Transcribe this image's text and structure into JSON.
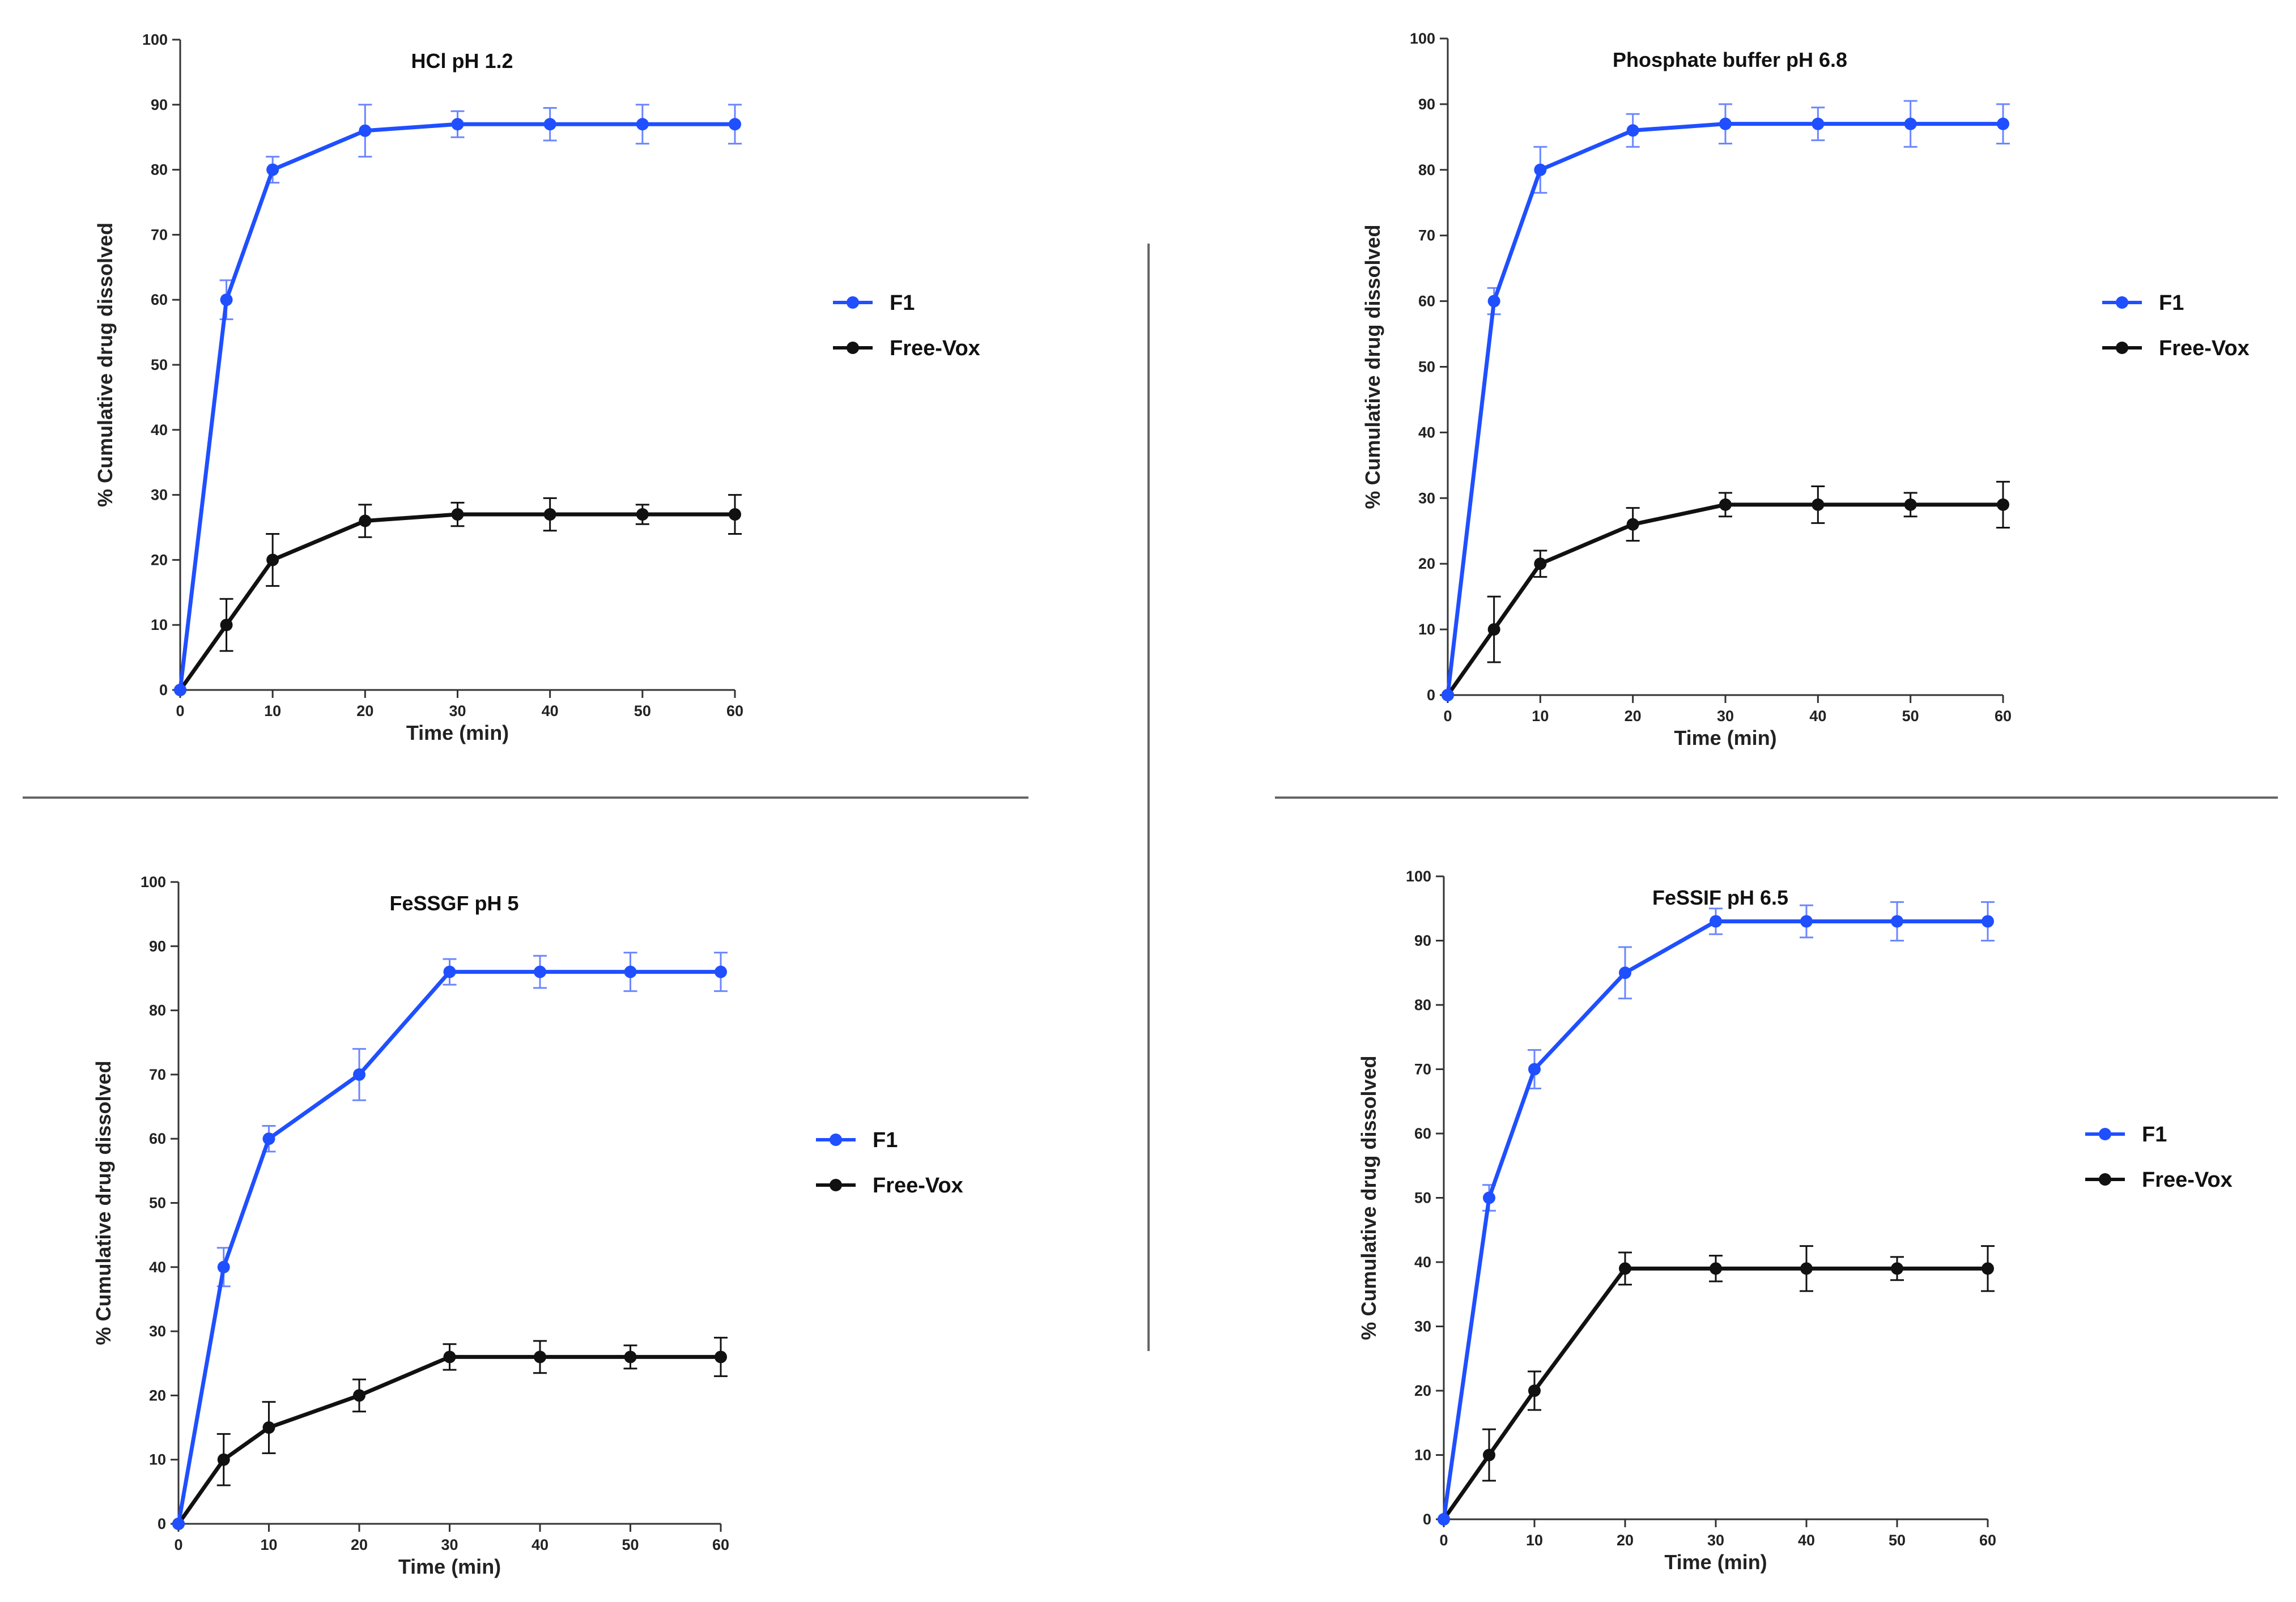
{
  "colors": {
    "F1": "#1f4fff",
    "Free-Vox": "#111111",
    "errorF1": "#6b86ff",
    "separator": "#666666"
  },
  "chart_data": [
    {
      "type": "line",
      "title": "HCl pH 1.2",
      "xlabel": "Time (min)",
      "ylabel": "% Cumulative drug dissolved",
      "xlim": [
        0,
        60
      ],
      "ylim": [
        0,
        100
      ],
      "xticks": [
        0,
        10,
        20,
        30,
        40,
        50,
        60
      ],
      "yticks": [
        0,
        10,
        20,
        30,
        40,
        50,
        60,
        70,
        80,
        90,
        100
      ],
      "legend_position": "right",
      "x": [
        0,
        5,
        10,
        20,
        30,
        40,
        50,
        60
      ],
      "series": [
        {
          "name": "F1",
          "values": [
            0,
            60,
            80,
            86,
            87,
            87,
            87,
            87
          ],
          "errors": [
            0,
            3,
            2,
            4,
            2,
            2.5,
            3,
            3
          ]
        },
        {
          "name": "Free-Vox",
          "values": [
            0,
            10,
            20,
            26,
            27,
            27,
            27,
            27
          ],
          "errors": [
            0,
            4,
            4,
            2.5,
            1.8,
            2.5,
            1.5,
            3
          ]
        }
      ]
    },
    {
      "type": "line",
      "title": "Phosphate buffer pH 6.8",
      "xlabel": "Time (min)",
      "ylabel": "% Cumulative drug dissolved",
      "xlim": [
        0,
        60
      ],
      "ylim": [
        0,
        100
      ],
      "xticks": [
        0,
        10,
        20,
        30,
        40,
        50,
        60
      ],
      "yticks": [
        0,
        10,
        20,
        30,
        40,
        50,
        60,
        70,
        80,
        90,
        100
      ],
      "legend_position": "right",
      "x": [
        0,
        5,
        10,
        20,
        30,
        40,
        50,
        60
      ],
      "series": [
        {
          "name": "F1",
          "values": [
            0,
            60,
            80,
            86,
            87,
            87,
            87,
            87
          ],
          "errors": [
            0,
            2,
            3.5,
            2.5,
            3,
            2.5,
            3.5,
            3
          ]
        },
        {
          "name": "Free-Vox",
          "values": [
            0,
            10,
            20,
            26,
            29,
            29,
            29,
            29
          ],
          "errors": [
            0,
            5,
            2,
            2.5,
            1.8,
            2.8,
            1.8,
            3.5
          ]
        }
      ]
    },
    {
      "type": "line",
      "title": "FeSSGF pH 5",
      "xlabel": "Time (min)",
      "ylabel": "% Cumulative drug dissolved",
      "xlim": [
        0,
        60
      ],
      "ylim": [
        0,
        100
      ],
      "xticks": [
        0,
        10,
        20,
        30,
        40,
        50,
        60
      ],
      "yticks": [
        0,
        10,
        20,
        30,
        40,
        50,
        60,
        70,
        80,
        90,
        100
      ],
      "legend_position": "right",
      "x": [
        0,
        5,
        10,
        20,
        30,
        40,
        50,
        60
      ],
      "series": [
        {
          "name": "F1",
          "values": [
            0,
            40,
            60,
            70,
            86,
            86,
            86,
            86
          ],
          "errors": [
            0,
            3,
            2,
            4,
            2,
            2.5,
            3,
            3
          ]
        },
        {
          "name": "Free-Vox",
          "values": [
            0,
            10,
            15,
            20,
            26,
            26,
            26,
            26
          ],
          "errors": [
            0,
            4,
            4,
            2.5,
            2,
            2.5,
            1.8,
            3
          ]
        }
      ]
    },
    {
      "type": "line",
      "title": "FeSSIF pH 6.5",
      "xlabel": "Time (min)",
      "ylabel": "% Cumulative drug dissolved",
      "xlim": [
        0,
        60
      ],
      "ylim": [
        0,
        100
      ],
      "xticks": [
        0,
        10,
        20,
        30,
        40,
        50,
        60
      ],
      "yticks": [
        0,
        10,
        20,
        30,
        40,
        50,
        60,
        70,
        80,
        90,
        100
      ],
      "legend_position": "right",
      "x": [
        0,
        5,
        10,
        20,
        30,
        40,
        50,
        60
      ],
      "series": [
        {
          "name": "F1",
          "values": [
            0,
            50,
            70,
            85,
            93,
            93,
            93,
            93
          ],
          "errors": [
            0,
            2,
            3,
            4,
            2,
            2.5,
            3,
            3
          ]
        },
        {
          "name": "Free-Vox",
          "values": [
            0,
            10,
            20,
            39,
            39,
            39,
            39,
            39
          ],
          "errors": [
            0,
            4,
            3,
            2.5,
            2,
            3.5,
            1.8,
            3.5
          ]
        }
      ]
    }
  ]
}
